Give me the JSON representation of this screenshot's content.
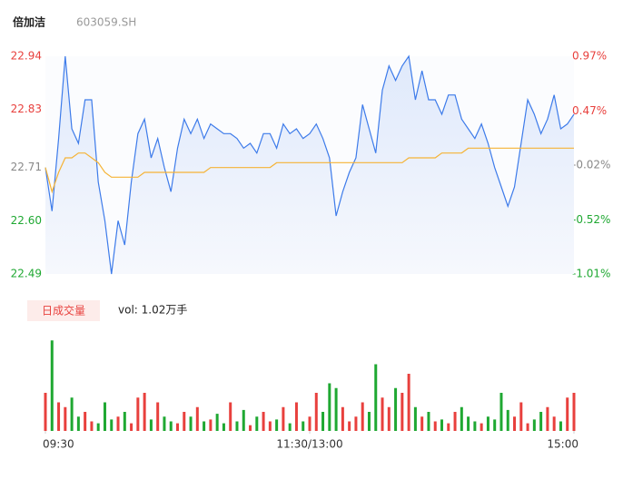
{
  "chart_data": {
    "type": "intraday",
    "title": "倍加洁",
    "subtitle": "603059.SH",
    "x": [
      0,
      1,
      2,
      3,
      4,
      5,
      6,
      7,
      8,
      9,
      10,
      11,
      12,
      13,
      14,
      15,
      16,
      17,
      18,
      19,
      20,
      21,
      22,
      23,
      24,
      25,
      26,
      27,
      28,
      29,
      30,
      31,
      32,
      33,
      34,
      35,
      36,
      37,
      38,
      39,
      40,
      41,
      42,
      43,
      44,
      45,
      46,
      47,
      48,
      49,
      50,
      51,
      52,
      53,
      54,
      55,
      56,
      57,
      58,
      59,
      60,
      61,
      62,
      63,
      64,
      65,
      66,
      67,
      68,
      69,
      70,
      71,
      72,
      73,
      74,
      75,
      76,
      77,
      78,
      79,
      80
    ],
    "xlim": [
      0,
      80
    ],
    "xticks": [
      {
        "value": 0,
        "label": "09:30"
      },
      {
        "value": 40,
        "label": "11:30/13:00"
      },
      {
        "value": 80,
        "label": "15:00"
      }
    ],
    "ylim": [
      22.49,
      22.94
    ],
    "yticks": [
      22.94,
      22.83,
      22.71,
      {
        "value": 22.6,
        "label": "22.60"
      },
      22.49
    ],
    "y2lim": [
      -1.01,
      0.97
    ],
    "y2ticks": [
      {
        "value": 0.97,
        "label": "0.97%"
      },
      {
        "value": 0.47,
        "label": "0.47%"
      },
      {
        "value": -0.02,
        "label": "-0.02%"
      },
      {
        "value": -0.52,
        "label": "-0.52%"
      },
      {
        "value": -1.01,
        "label": "-1.01%"
      }
    ],
    "series": [
      {
        "name": "price",
        "color": "#3d7bea",
        "values": [
          22.71,
          22.62,
          22.77,
          22.94,
          22.79,
          22.76,
          22.85,
          22.85,
          22.68,
          22.6,
          22.49,
          22.6,
          22.55,
          22.68,
          22.78,
          22.81,
          22.73,
          22.77,
          22.71,
          22.66,
          22.75,
          22.81,
          22.78,
          22.81,
          22.77,
          22.8,
          22.79,
          22.78,
          22.78,
          22.77,
          22.75,
          22.76,
          22.74,
          22.78,
          22.78,
          22.75,
          22.8,
          22.78,
          22.79,
          22.77,
          22.78,
          22.8,
          22.77,
          22.73,
          22.61,
          22.66,
          22.7,
          22.73,
          22.84,
          22.79,
          22.74,
          22.87,
          22.92,
          22.89,
          22.92,
          22.94,
          22.85,
          22.91,
          22.85,
          22.85,
          22.82,
          22.86,
          22.86,
          22.81,
          22.79,
          22.77,
          22.8,
          22.76,
          22.71,
          22.67,
          22.63,
          22.67,
          22.76,
          22.85,
          22.82,
          22.78,
          22.81,
          22.86,
          22.79,
          22.8,
          22.82
        ]
      },
      {
        "name": "average",
        "color": "#f5b335",
        "values": [
          22.71,
          22.66,
          22.7,
          22.73,
          22.73,
          22.74,
          22.74,
          22.73,
          22.72,
          22.7,
          22.69,
          22.69,
          22.69,
          22.69,
          22.69,
          22.7,
          22.7,
          22.7,
          22.7,
          22.7,
          22.7,
          22.7,
          22.7,
          22.7,
          22.7,
          22.71,
          22.71,
          22.71,
          22.71,
          22.71,
          22.71,
          22.71,
          22.71,
          22.71,
          22.71,
          22.72,
          22.72,
          22.72,
          22.72,
          22.72,
          22.72,
          22.72,
          22.72,
          22.72,
          22.72,
          22.72,
          22.72,
          22.72,
          22.72,
          22.72,
          22.72,
          22.72,
          22.72,
          22.72,
          22.72,
          22.73,
          22.73,
          22.73,
          22.73,
          22.73,
          22.74,
          22.74,
          22.74,
          22.74,
          22.75,
          22.75,
          22.75,
          22.75,
          22.75,
          22.75,
          22.75,
          22.75,
          22.75,
          22.75,
          22.75,
          22.75,
          22.75,
          22.75,
          22.75,
          22.75,
          22.75
        ]
      }
    ],
    "volume": {
      "label": "日成交量",
      "text": "vol: 1.02万手",
      "up_color": "#e8403d",
      "down_color": "#1fa832",
      "ylim": [
        0,
        100
      ],
      "values": [
        40,
        95,
        30,
        25,
        35,
        15,
        20,
        10,
        8,
        30,
        12,
        15,
        20,
        8,
        35,
        40,
        12,
        30,
        15,
        10,
        8,
        20,
        15,
        25,
        10,
        12,
        18,
        8,
        30,
        10,
        22,
        6,
        15,
        20,
        10,
        12,
        25,
        8,
        30,
        10,
        15,
        40,
        20,
        50,
        45,
        25,
        10,
        15,
        30,
        20,
        70,
        35,
        25,
        45,
        40,
        60,
        25,
        15,
        20,
        10,
        12,
        8,
        20,
        25,
        15,
        10,
        8,
        15,
        12,
        40,
        22,
        15,
        30,
        8,
        12,
        20,
        25,
        15,
        10,
        35,
        40
      ]
    }
  }
}
